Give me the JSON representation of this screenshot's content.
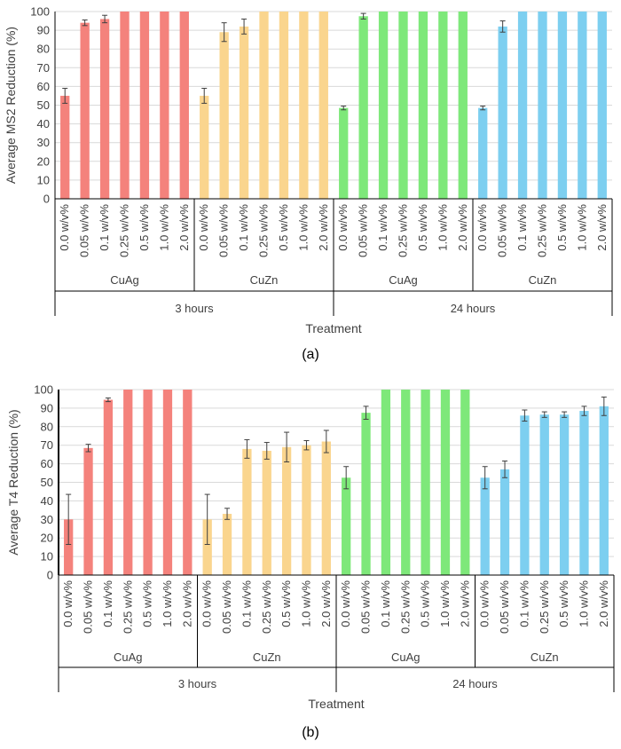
{
  "colors": {
    "CuAg_3h": "#f4827c",
    "CuZn_3h": "#fad58e",
    "CuAg_24h": "#7ee87a",
    "CuZn_24h": "#7dcff0",
    "error_bar": "#404040",
    "grid": "#d9d9d9"
  },
  "chart_data": [
    {
      "type": "bar",
      "panel_label": "(a)",
      "ylabel": "Average MS2 Reduction (%)",
      "xlabel": "Treatment",
      "ylim": [
        0,
        100
      ],
      "yticks": [
        "0",
        "10",
        "20",
        "30",
        "40",
        "50",
        "60",
        "70",
        "80",
        "90",
        "100"
      ],
      "grid": true,
      "categories": [
        "0.0 w/v%",
        "0.05 w/v%",
        "0.1 w/v%",
        "0.25 w/v%",
        "0.5 w/v%",
        "1.0 w/v%",
        "2.0 w/v%"
      ],
      "group_labels": [
        "CuAg",
        "CuZn",
        "CuAg",
        "CuZn"
      ],
      "time_labels": [
        "3 hours",
        "24 hours"
      ],
      "series": [
        {
          "group": "CuAg",
          "time": "3 hours",
          "color_key": "CuAg_3h",
          "values": [
            55,
            94,
            96,
            100,
            100,
            100,
            100
          ],
          "errors": [
            4,
            1.5,
            2,
            0,
            0,
            0,
            0
          ]
        },
        {
          "group": "CuZn",
          "time": "3 hours",
          "color_key": "CuZn_3h",
          "values": [
            55,
            89,
            92,
            100,
            100,
            100,
            100
          ],
          "errors": [
            4,
            5,
            4,
            0,
            0,
            0,
            0
          ]
        },
        {
          "group": "CuAg",
          "time": "24 hours",
          "color_key": "CuAg_24h",
          "values": [
            48.5,
            97.5,
            100,
            100,
            100,
            100,
            100
          ],
          "errors": [
            1,
            1.5,
            0,
            0,
            0,
            0,
            0
          ]
        },
        {
          "group": "CuZn",
          "time": "24 hours",
          "color_key": "CuZn_24h",
          "values": [
            48.5,
            92,
            100,
            100,
            100,
            100,
            100
          ],
          "errors": [
            1,
            3,
            0,
            0,
            0,
            0,
            0
          ]
        }
      ]
    },
    {
      "type": "bar",
      "panel_label": "(b)",
      "ylabel": "Average T4 Reduction (%)",
      "xlabel": "Treatment",
      "ylim": [
        0,
        100
      ],
      "yticks": [
        "0",
        "10",
        "20",
        "30",
        "40",
        "50",
        "60",
        "70",
        "80",
        "90",
        "100"
      ],
      "grid": true,
      "categories": [
        "0.0 w/v%",
        "0.05 w/v%",
        "0.1 w/v%",
        "0.25 w/v%",
        "0.5 w/v%",
        "1.0 w/v%",
        "2.0 w/v%"
      ],
      "group_labels": [
        "CuAg",
        "CuZn",
        "CuAg",
        "CuZn"
      ],
      "time_labels": [
        "3 hours",
        "24 hours"
      ],
      "series": [
        {
          "group": "CuAg",
          "time": "3 hours",
          "color_key": "CuAg_3h",
          "values": [
            30,
            68.5,
            94.5,
            100,
            100,
            100,
            100
          ],
          "errors": [
            13.5,
            2,
            1,
            0,
            0,
            0,
            0
          ]
        },
        {
          "group": "CuZn",
          "time": "3 hours",
          "color_key": "CuZn_3h",
          "values": [
            30,
            33,
            68,
            67,
            69,
            70,
            72
          ],
          "errors": [
            13.5,
            3,
            5,
            4.5,
            8,
            2.5,
            6
          ]
        },
        {
          "group": "CuAg",
          "time": "24 hours",
          "color_key": "CuAg_24h",
          "values": [
            52.5,
            87.5,
            100,
            100,
            100,
            100,
            100
          ],
          "errors": [
            6,
            3.5,
            0,
            0,
            0,
            0,
            0
          ]
        },
        {
          "group": "CuZn",
          "time": "24 hours",
          "color_key": "CuZn_24h",
          "values": [
            52.5,
            57,
            86,
            86.5,
            86.5,
            88.5,
            91
          ],
          "errors": [
            6,
            4.5,
            3,
            1.5,
            1.5,
            2.5,
            5
          ]
        }
      ]
    }
  ]
}
